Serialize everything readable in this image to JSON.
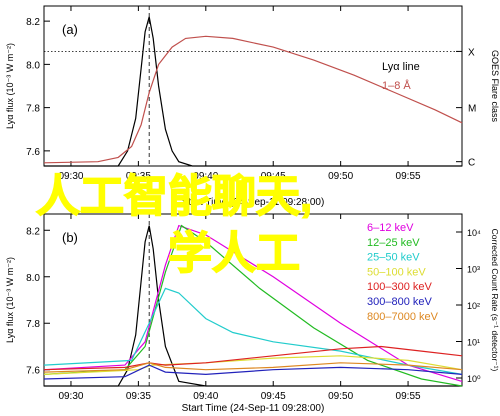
{
  "overlay": {
    "line1": "人工智能聊天,",
    "line2": "学人工"
  },
  "chart_data": [
    {
      "type": "line",
      "panel_label": "(a)",
      "ylabel": "Lyα flux (10⁻³ W m⁻²)",
      "xlabel": "Start Time (24-Sep-11 09:28:00)",
      "x_ticks": [
        "09:30",
        "09:35",
        "09:40",
        "09:45",
        "09:50",
        "09:55"
      ],
      "x_range": [
        "09:28",
        "09:59"
      ],
      "y_ticks": [
        7.6,
        7.8,
        8.0,
        8.2
      ],
      "ylim": [
        7.53,
        8.27
      ],
      "right_axis": {
        "label": "GOES Flare class",
        "ticks": [
          "C",
          "M",
          "X"
        ],
        "positions": [
          7.55,
          7.8,
          8.06
        ]
      },
      "legend": [
        "Lyα line",
        "1–8 Å"
      ],
      "hline": {
        "y": 8.06
      },
      "vline": {
        "x": "09:35.8"
      },
      "series": [
        {
          "name": "Lyα line",
          "color": "#000000",
          "axis": "left",
          "x": [
            "09:28",
            "09:30",
            "09:32",
            "09:33.5",
            "09:34.2",
            "09:34.8",
            "09:35.2",
            "09:35.5",
            "09:35.8",
            "09:36.1",
            "09:36.5",
            "09:37",
            "09:37.5",
            "09:38",
            "09:39",
            "09:40",
            "09:42",
            "09:45",
            "09:50",
            "09:55",
            "09:59"
          ],
          "values": [
            7.52,
            7.52,
            7.52,
            7.53,
            7.6,
            7.75,
            7.98,
            8.15,
            8.22,
            8.12,
            7.9,
            7.7,
            7.6,
            7.55,
            7.53,
            7.52,
            7.52,
            7.52,
            7.52,
            7.52,
            7.52
          ]
        },
        {
          "name": "1–8 Å",
          "color": "#c0504d",
          "axis": "right",
          "x": [
            "09:28",
            "09:32",
            "09:33.5",
            "09:34.5",
            "09:35.2",
            "09:35.8",
            "09:36.5",
            "09:37.5",
            "09:38.5",
            "09:40",
            "09:42",
            "09:45",
            "09:48",
            "09:51",
            "09:54",
            "09:57",
            "09:59"
          ],
          "values": [
            7.545,
            7.55,
            7.57,
            7.62,
            7.72,
            7.87,
            8.0,
            8.08,
            8.12,
            8.13,
            8.12,
            8.08,
            8.02,
            7.95,
            7.87,
            7.79,
            7.73
          ]
        }
      ]
    },
    {
      "type": "line",
      "panel_label": "(b)",
      "ylabel": "Lyα flux (10⁻³ W m⁻²)",
      "xlabel": "Start Time (24-Sep-11 09:28:00)",
      "x_ticks": [
        "09:30",
        "09:35",
        "09:40",
        "09:45",
        "09:50",
        "09:55"
      ],
      "x_range": [
        "09:28",
        "09:59"
      ],
      "y_ticks": [
        7.6,
        7.8,
        8.0,
        8.2
      ],
      "ylim": [
        7.53,
        8.27
      ],
      "right_axis": {
        "label": "Corrected Count Rate (s⁻¹ detector⁻¹)",
        "scale": "log",
        "ticks": [
          "10⁰",
          "10¹",
          "10²",
          "10³",
          "10⁴"
        ]
      },
      "vline": {
        "x": "09:35.8"
      },
      "series": [
        {
          "name": "Lyα",
          "color": "#000000",
          "x": [
            "09:28",
            "09:32",
            "09:33.5",
            "09:34.2",
            "09:34.8",
            "09:35.2",
            "09:35.5",
            "09:35.8",
            "09:36.1",
            "09:36.5",
            "09:37",
            "09:38",
            "09:40",
            "09:45",
            "09:50",
            "09:55",
            "09:59"
          ],
          "values": [
            7.52,
            7.52,
            7.53,
            7.6,
            7.75,
            7.98,
            8.15,
            8.22,
            8.12,
            7.9,
            7.7,
            7.55,
            7.52,
            7.52,
            7.52,
            7.52,
            7.52
          ]
        },
        {
          "name": "6–12 keV",
          "color": "#e000e0",
          "x": [
            "09:28",
            "09:34",
            "09:35.5",
            "09:37",
            "09:38",
            "09:40",
            "09:45",
            "09:50",
            "09:55",
            "09:59"
          ],
          "values": [
            7.6,
            7.62,
            7.72,
            8.05,
            8.22,
            8.18,
            8.0,
            7.8,
            7.62,
            7.55
          ]
        },
        {
          "name": "12–25 keV",
          "color": "#22bb22",
          "x": [
            "09:28",
            "09:34",
            "09:35.5",
            "09:37",
            "09:38.2",
            "09:40",
            "09:44",
            "09:48",
            "09:52",
            "09:56",
            "09:59"
          ],
          "values": [
            7.58,
            7.6,
            7.7,
            8.02,
            8.22,
            8.15,
            7.95,
            7.78,
            7.64,
            7.56,
            7.53
          ]
        },
        {
          "name": "25–50 keV",
          "color": "#22cccc",
          "x": [
            "09:28",
            "09:34.5",
            "09:35.8",
            "09:37",
            "09:38",
            "09:40",
            "09:42",
            "09:45",
            "09:50",
            "09:55",
            "09:59"
          ],
          "values": [
            7.62,
            7.64,
            7.8,
            7.95,
            7.93,
            7.82,
            7.76,
            7.72,
            7.68,
            7.62,
            7.58
          ]
        },
        {
          "name": "50–100 keV",
          "color": "#dddd33",
          "x": [
            "09:28",
            "09:35",
            "09:36",
            "09:40",
            "09:45",
            "09:50",
            "09:55",
            "09:59"
          ],
          "values": [
            7.58,
            7.6,
            7.62,
            7.63,
            7.65,
            7.66,
            7.64,
            7.6
          ]
        },
        {
          "name": "100–300 keV",
          "color": "#dd2222",
          "x": [
            "09:28",
            "09:34",
            "09:35.8",
            "09:37",
            "09:40",
            "09:45",
            "09:50",
            "09:53",
            "09:56",
            "09:59"
          ],
          "values": [
            7.6,
            7.61,
            7.63,
            7.62,
            7.63,
            7.66,
            7.69,
            7.7,
            7.68,
            7.66
          ]
        },
        {
          "name": "300–800 keV",
          "color": "#2222bb",
          "x": [
            "09:28",
            "09:34",
            "09:35.8",
            "09:37",
            "09:40",
            "09:45",
            "09:50",
            "09:55",
            "09:59"
          ],
          "values": [
            7.56,
            7.57,
            7.62,
            7.59,
            7.58,
            7.6,
            7.61,
            7.6,
            7.58
          ]
        },
        {
          "name": "800–7000 keV",
          "color": "#dd8822",
          "x": [
            "09:28",
            "09:34",
            "09:35.8",
            "09:37",
            "09:40",
            "09:45",
            "09:50",
            "09:55",
            "09:59"
          ],
          "values": [
            7.59,
            7.6,
            7.63,
            7.61,
            7.6,
            7.61,
            7.63,
            7.62,
            7.6
          ]
        }
      ]
    }
  ]
}
